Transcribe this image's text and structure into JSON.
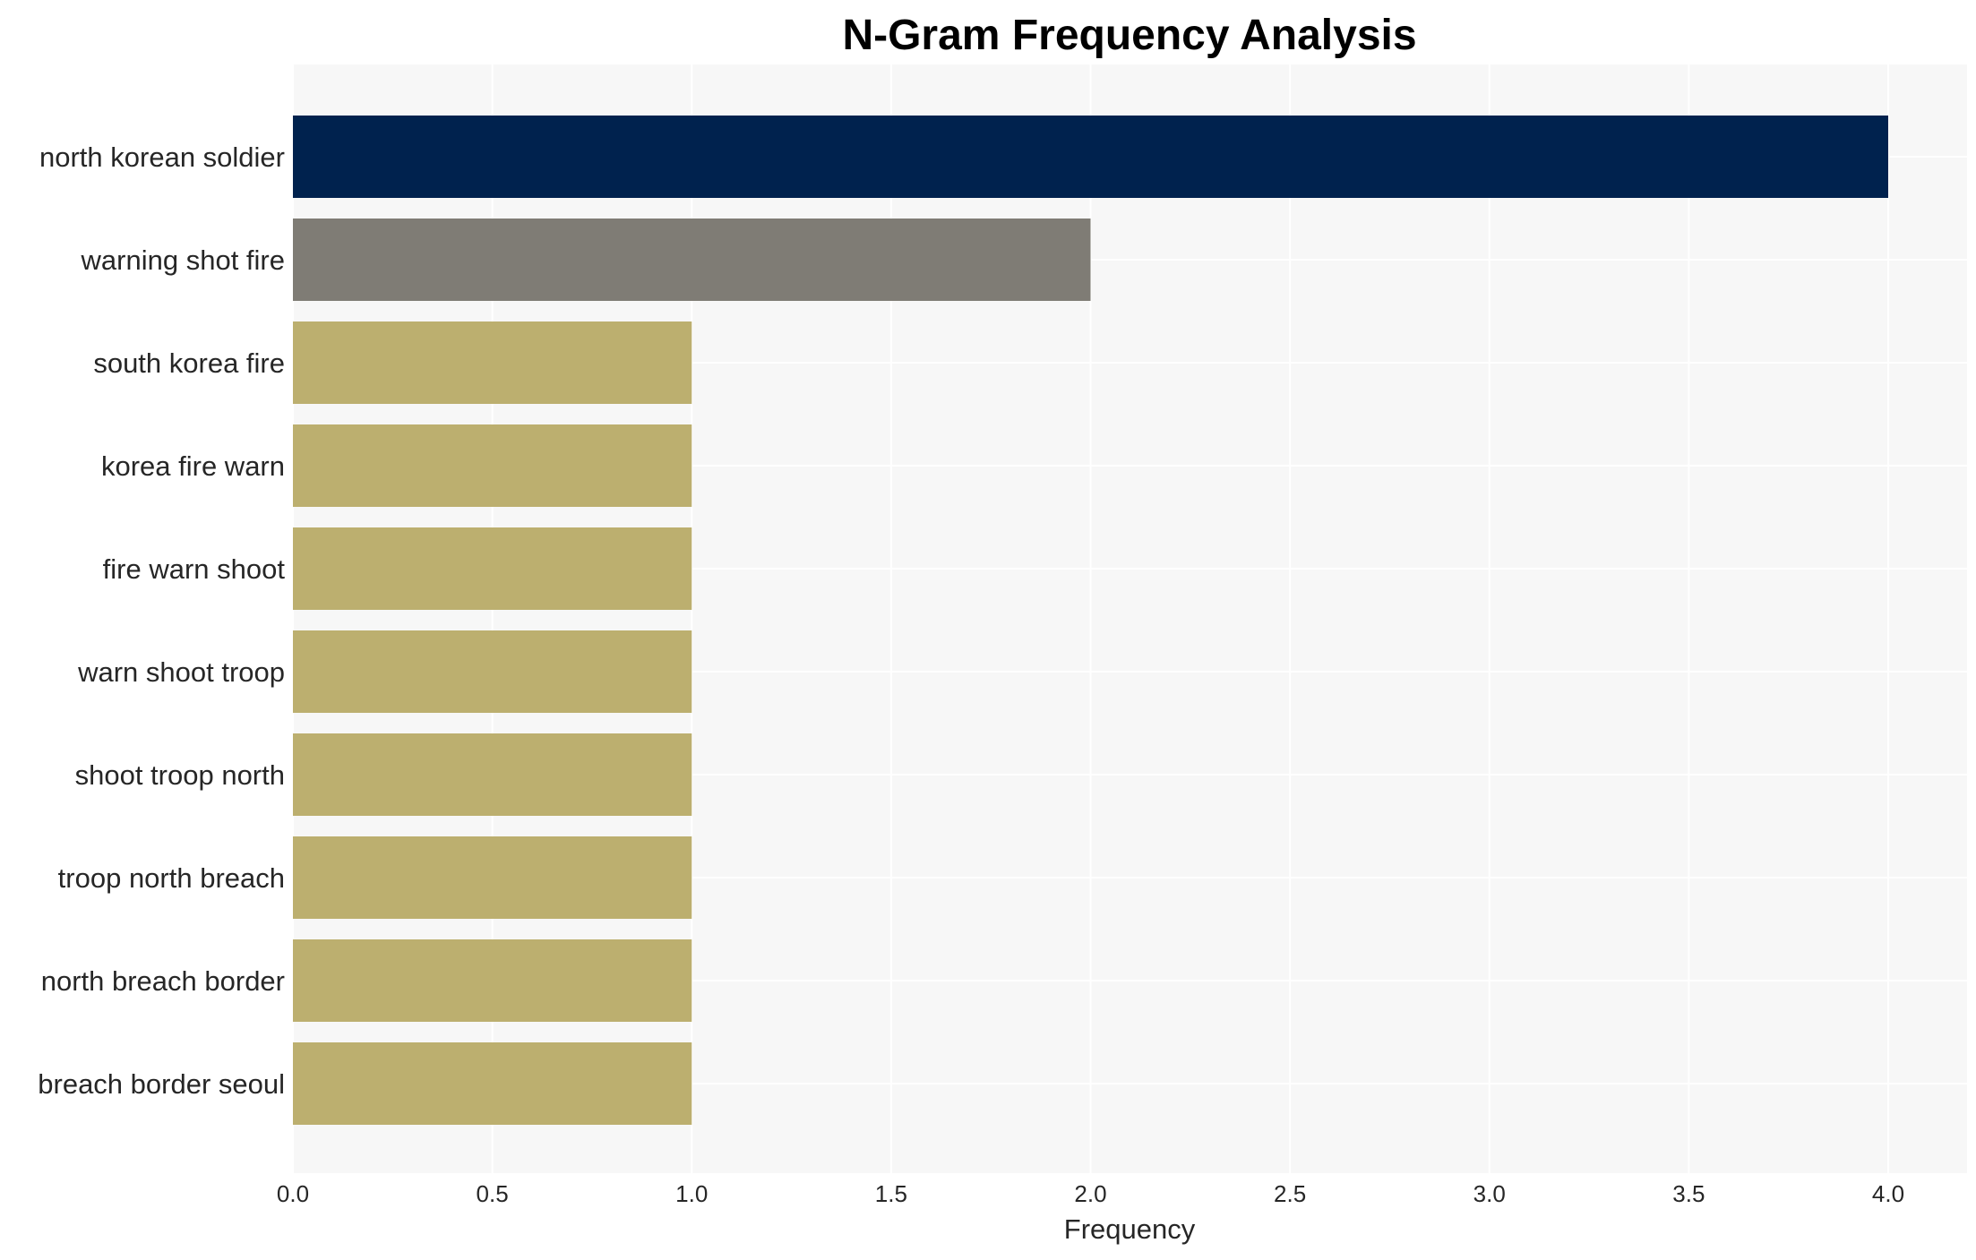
{
  "chart_data": {
    "type": "bar",
    "orientation": "horizontal",
    "title": "N-Gram Frequency Analysis",
    "xlabel": "Frequency",
    "ylabel": "",
    "xlim": [
      0,
      4.2
    ],
    "x_ticks": [
      "0.0",
      "0.5",
      "1.0",
      "1.5",
      "2.0",
      "2.5",
      "3.0",
      "3.5",
      "4.0"
    ],
    "grid": true,
    "categories": [
      "north korean soldier",
      "warning shot fire",
      "south korea fire",
      "korea fire warn",
      "fire warn shoot",
      "warn shoot troop",
      "shoot troop north",
      "troop north breach",
      "north breach border",
      "breach border seoul"
    ],
    "values": [
      4,
      2,
      1,
      1,
      1,
      1,
      1,
      1,
      1,
      1
    ],
    "bar_colors": [
      "#00224e",
      "#7f7c75",
      "#bcaf6f",
      "#bcaf6f",
      "#bcaf6f",
      "#bcaf6f",
      "#bcaf6f",
      "#bcaf6f",
      "#bcaf6f",
      "#bcaf6f"
    ],
    "background_color": "#f7f7f7",
    "grid_color": "#ffffff"
  }
}
